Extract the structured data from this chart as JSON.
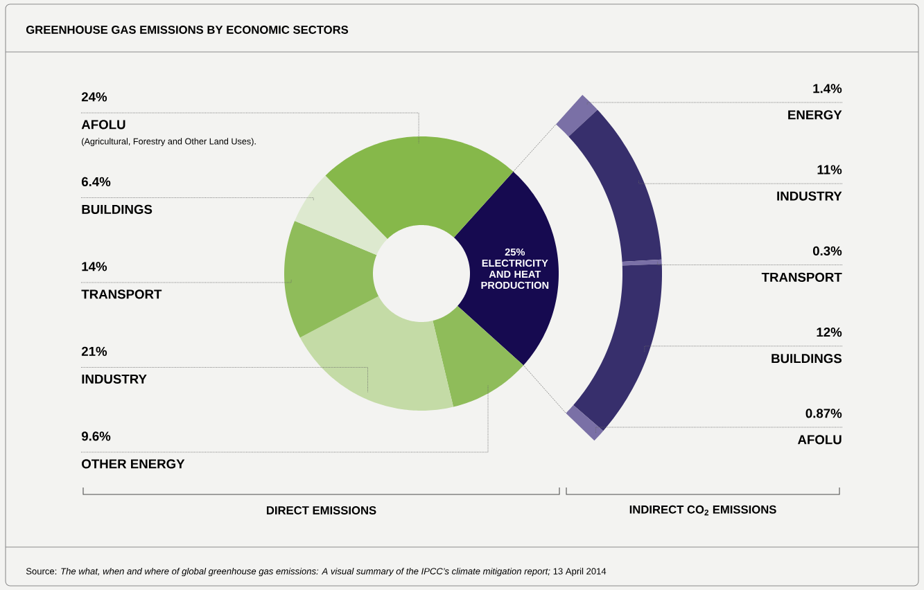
{
  "chart_data": [
    {
      "type": "donut",
      "title": "GREENHOUSE GAS EMISSIONS BY ECONOMIC SECTORS",
      "xlabel": "DIRECT EMISSIONS",
      "categories": [
        "ELECTRICITY AND HEAT PRODUCTION",
        "OTHER ENERGY",
        "INDUSTRY",
        "TRANSPORT",
        "BUILDINGS",
        "AFOLU"
      ],
      "values": [
        25,
        9.6,
        21,
        14,
        6.4,
        24
      ],
      "colors": [
        "#160a50",
        "#8fbc5a",
        "#c4dba6",
        "#8fbc5a",
        "#dde9cf",
        "#86b84a"
      ],
      "value_labels": [
        "25%",
        "9.6%",
        "21%",
        "14%",
        "6.4%",
        "24%"
      ],
      "annotations": [
        "(Agricultural, Forestry and Other Land Uses).",
        "Source: *The what, when and where of global greenhouse gas emissions: A visual summary of the IPCC’s climate mitigation report;* 13 April 2014"
      ]
    },
    {
      "type": "donut",
      "xlabel": "INDIRECT CO$_{2}$ EMISSIONS",
      "categories": [
        "ENERGY",
        "INDUSTRY",
        "TRANSPORT",
        "BUILDINGS",
        "AFOLU"
      ],
      "values": [
        1.4,
        11,
        0.3,
        12,
        0.87
      ],
      "colors": [
        "#7a70a6",
        "#372f6c",
        "#7a70a6",
        "#372f6c",
        "#7a70a6"
      ],
      "value_labels": [
        "1.4%",
        "11%",
        "0.3%",
        "12%",
        "0.87%"
      ]
    }
  ]
}
